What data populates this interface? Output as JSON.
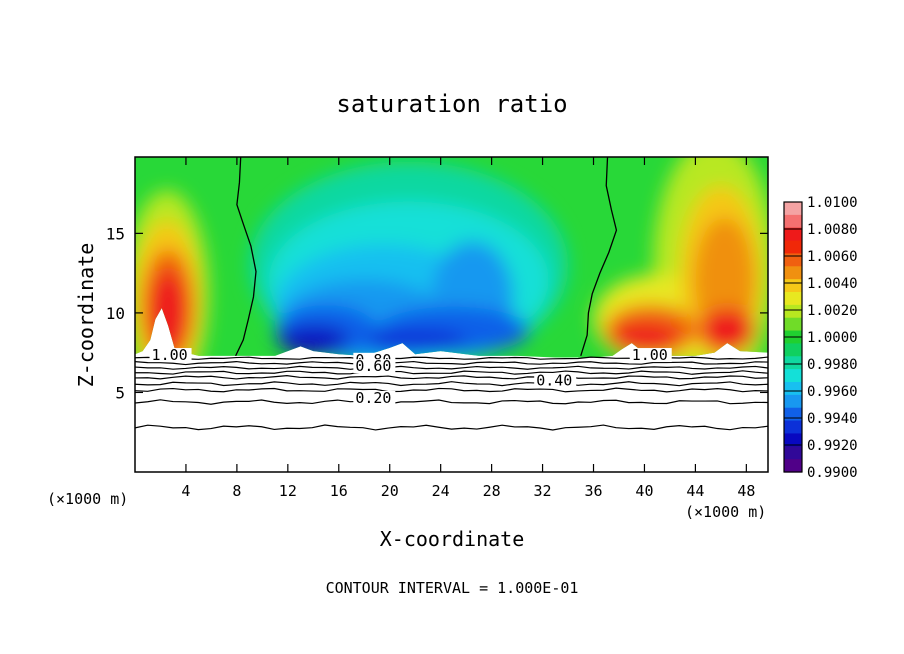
{
  "chart_data": {
    "type": "contour",
    "title": "saturation ratio",
    "xlabel": "X-coordinate",
    "ylabel": "Z-coordinate",
    "x_unit_left": "(×1000 m)",
    "x_unit_right": "(×1000 m)",
    "footer": "CONTOUR INTERVAL = 1.000E-01",
    "xlim": [
      0,
      49.7
    ],
    "ylim": [
      0,
      19.8
    ],
    "x_ticks": [
      4,
      8,
      12,
      16,
      20,
      24,
      28,
      32,
      36,
      40,
      44,
      48
    ],
    "y_ticks": [
      5,
      10,
      15
    ],
    "grid": false,
    "colorbar": {
      "placement": "right",
      "labels": [
        "1.0100",
        "1.0080",
        "1.0060",
        "1.0040",
        "1.0020",
        "1.0000",
        "0.9980",
        "0.9960",
        "0.9940",
        "0.9920",
        "0.9900"
      ],
      "colors": [
        "#f4a3a3",
        "#f47070",
        "#ee1a1a",
        "#f02808",
        "#f06010",
        "#f09010",
        "#f5c818",
        "#e8e820",
        "#b8e820",
        "#70dc28",
        "#20d030",
        "#10d060",
        "#10d8a0",
        "#14e0d8",
        "#18c0f0",
        "#1898f0",
        "#1060e8",
        "#0c30d8",
        "#0808c0",
        "#300898",
        "#500088"
      ]
    },
    "contour_labels": [
      {
        "text": "1.00",
        "x": 1.3,
        "z": 7.1
      },
      {
        "text": "0.80",
        "x": 17.3,
        "z": 6.8
      },
      {
        "text": "0.60",
        "x": 17.3,
        "z": 6.4
      },
      {
        "text": "0.40",
        "x": 31.5,
        "z": 5.5
      },
      {
        "text": "0.20",
        "x": 17.3,
        "z": 4.4
      },
      {
        "text": "1.00",
        "x": 39.0,
        "z": 7.1
      }
    ]
  }
}
